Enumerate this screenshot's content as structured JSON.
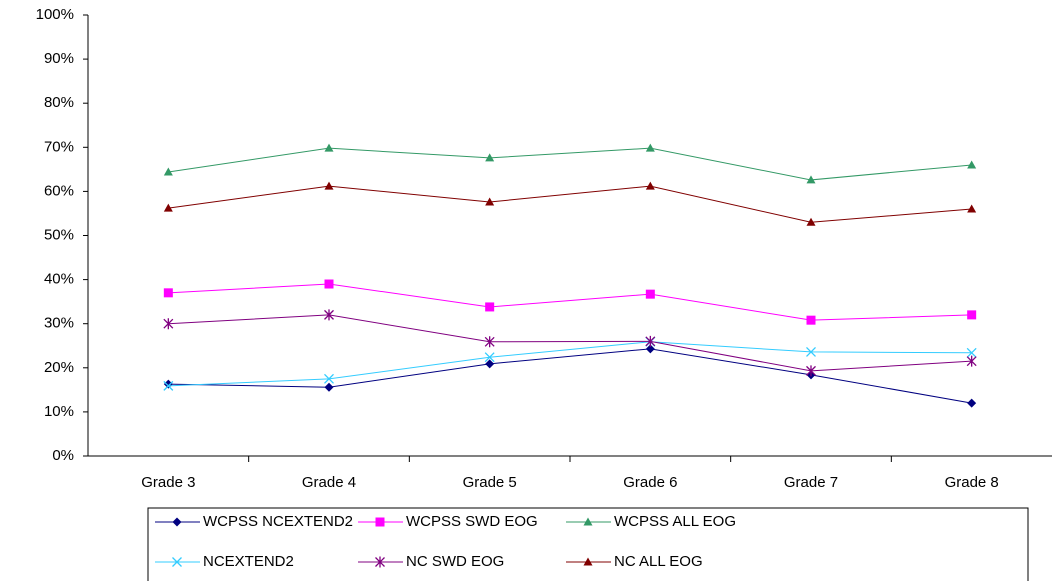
{
  "chart_data": {
    "type": "line",
    "categories": [
      "Grade 3",
      "Grade 4",
      "Grade 5",
      "Grade 6",
      "Grade 7",
      "Grade 8"
    ],
    "ylim": [
      0,
      100
    ],
    "yticks": [
      {
        "value": 0,
        "label": "0%"
      },
      {
        "value": 10,
        "label": "10%"
      },
      {
        "value": 20,
        "label": "20%"
      },
      {
        "value": 30,
        "label": "30%"
      },
      {
        "value": 40,
        "label": "40%"
      },
      {
        "value": 50,
        "label": "50%"
      },
      {
        "value": 60,
        "label": "60%"
      },
      {
        "value": 70,
        "label": "70%"
      },
      {
        "value": 80,
        "label": "80%"
      },
      {
        "value": 90,
        "label": "90%"
      },
      {
        "value": 100,
        "label": "100%"
      }
    ],
    "grid": false,
    "legend": "bottom",
    "series": [
      {
        "name": "WCPSS NCEXTEND2",
        "color": "#000080",
        "marker": "diamond",
        "values": [
          16.3,
          15.6,
          20.9,
          24.3,
          18.4,
          12
        ]
      },
      {
        "name": "WCPSS SWD EOG",
        "color": "#ff00ff",
        "marker": "square",
        "values": [
          37,
          39,
          33.8,
          36.7,
          30.8,
          32
        ]
      },
      {
        "name": "WCPSS ALL EOG",
        "color": "#339966",
        "marker": "triangle",
        "values": [
          64.4,
          69.8,
          67.6,
          69.8,
          62.6,
          66
        ]
      },
      {
        "name": "NCEXTEND2",
        "color": "#33ccff",
        "marker": "x",
        "values": [
          15.9,
          17.5,
          22.4,
          25.9,
          23.6,
          23.4
        ]
      },
      {
        "name": "NC SWD EOG",
        "color": "#800080",
        "marker": "star",
        "values": [
          30,
          32,
          25.9,
          26,
          19.3,
          21.5
        ]
      },
      {
        "name": "NC ALL EOG",
        "color": "#800000",
        "marker": "triangle",
        "values": [
          56.2,
          61.2,
          57.6,
          61.2,
          53,
          56
        ]
      }
    ]
  }
}
